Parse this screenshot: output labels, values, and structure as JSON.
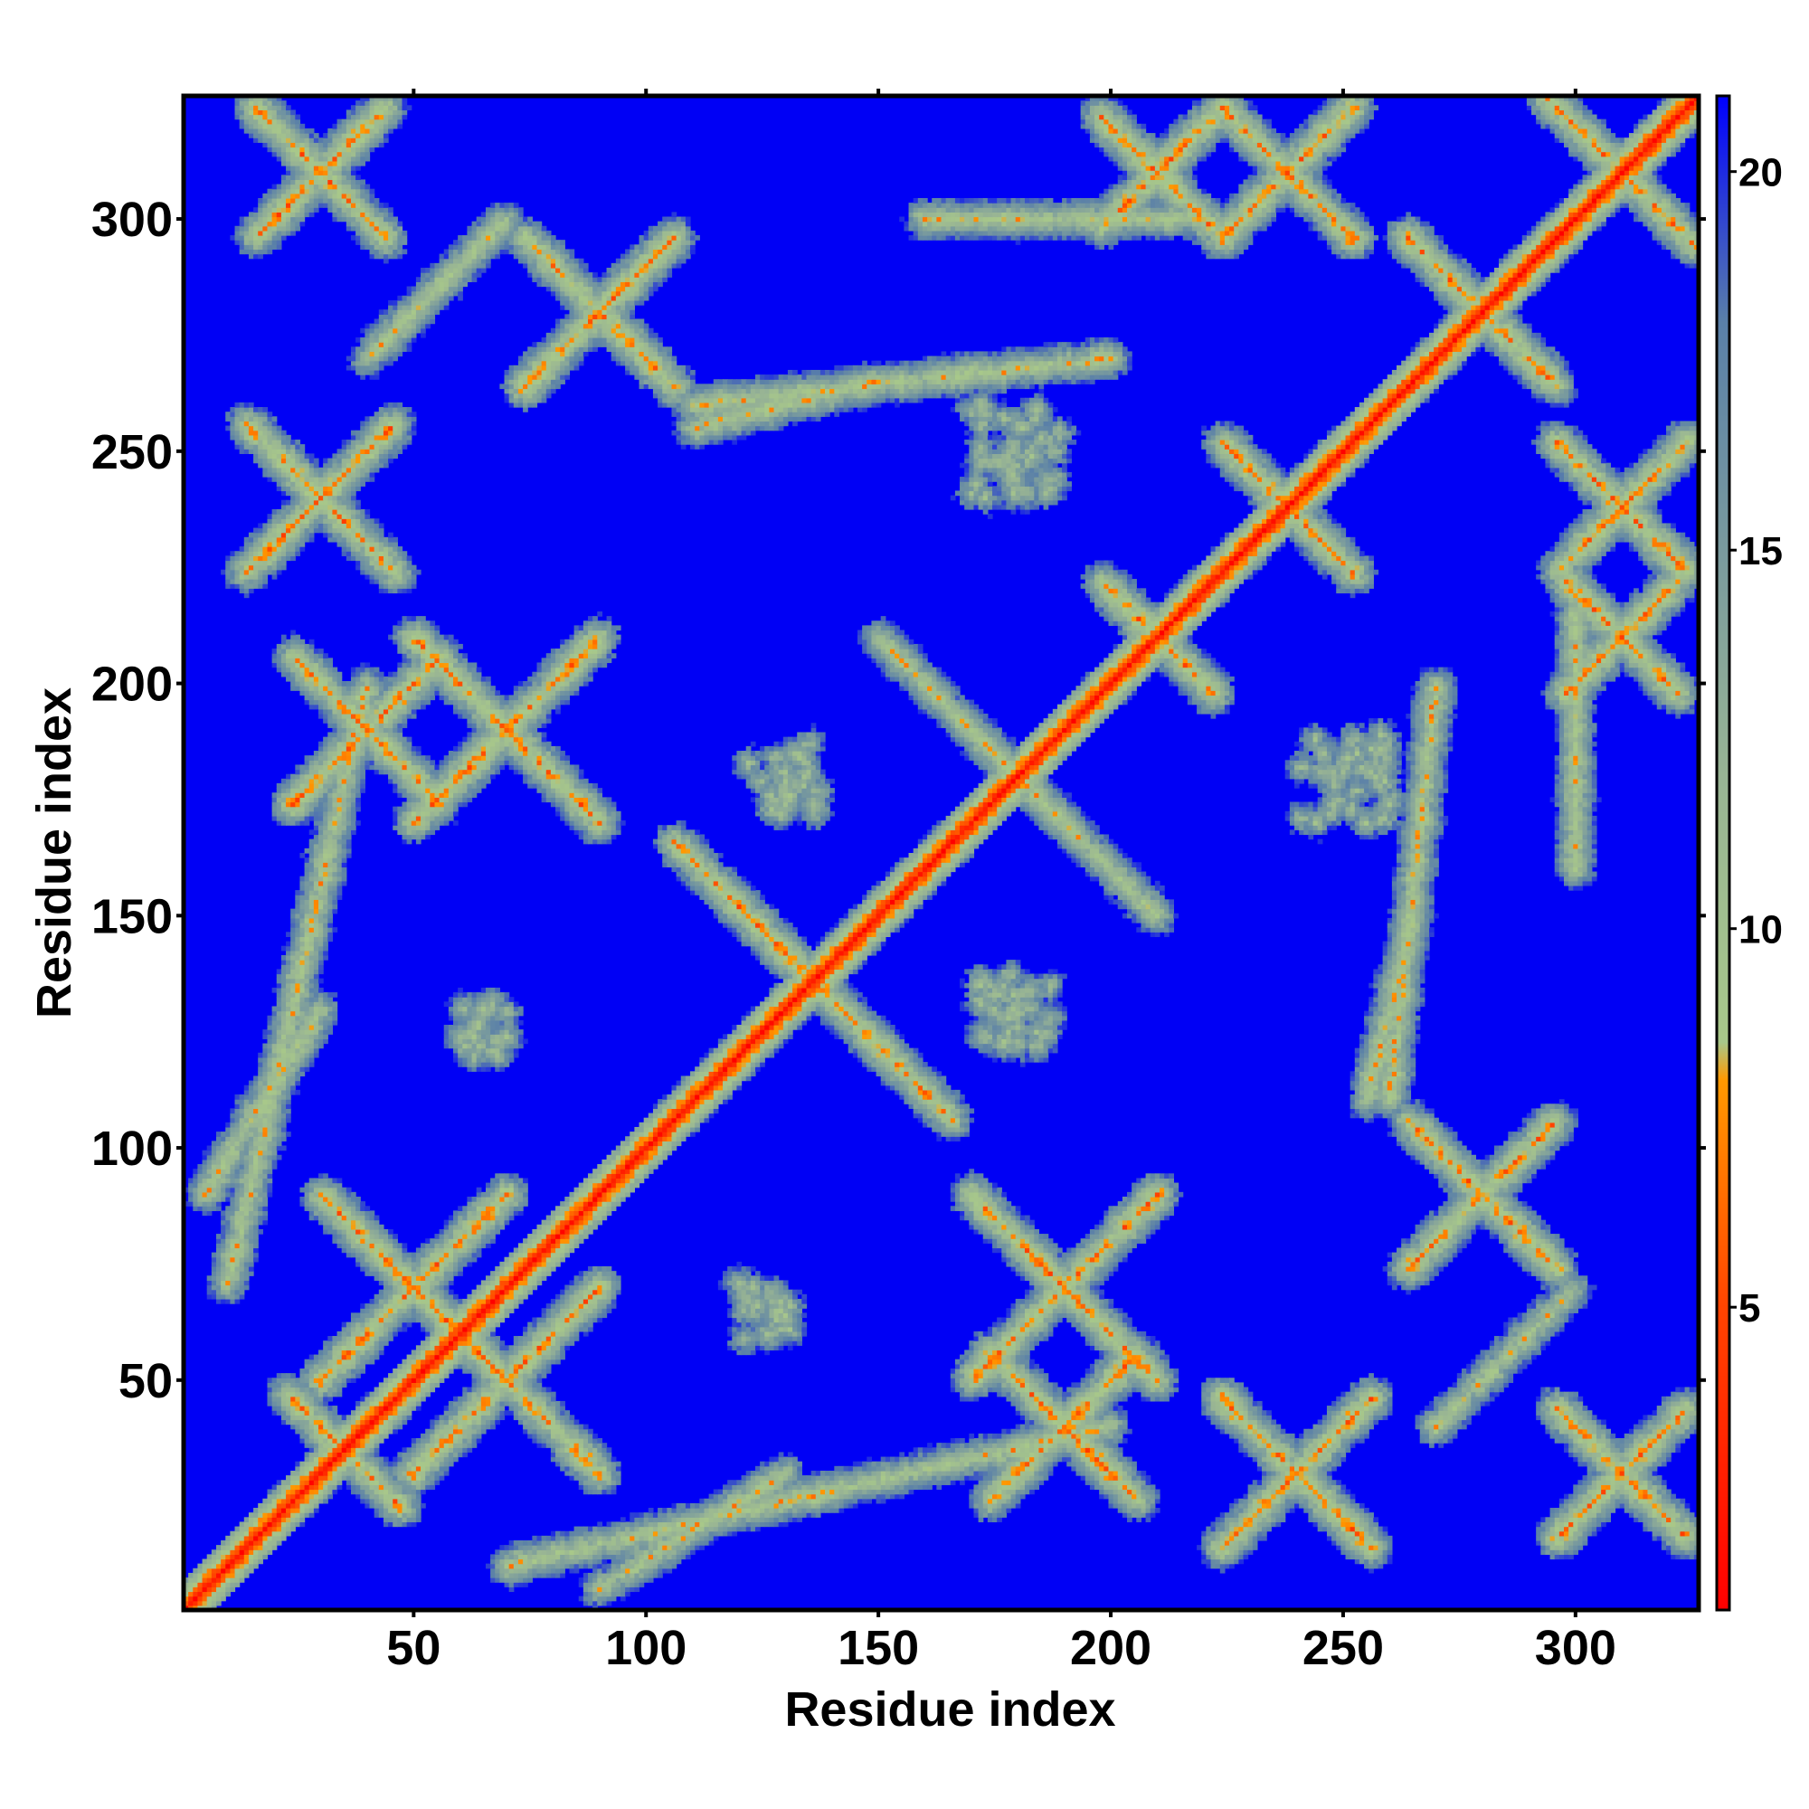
{
  "chart_data": {
    "type": "heatmap",
    "title": "",
    "xlabel": "Residue index",
    "ylabel": "Residue index",
    "n_residues": 326,
    "xlim": [
      1,
      326
    ],
    "ylim": [
      1,
      326
    ],
    "x_ticks": [
      50,
      100,
      150,
      200,
      250,
      300
    ],
    "y_ticks": [
      50,
      100,
      150,
      200,
      250,
      300
    ],
    "colorbar": {
      "ticks": [
        5,
        10,
        15,
        20
      ],
      "range": [
        1,
        21
      ],
      "colors": [
        {
          "value": 1,
          "color": "#ff0000"
        },
        {
          "value": 5,
          "color": "#ff4400"
        },
        {
          "value": 8,
          "color": "#ff9900"
        },
        {
          "value": 8.5,
          "color": "#a8c88a"
        },
        {
          "value": 12,
          "color": "#98b494"
        },
        {
          "value": 18,
          "color": "#5a80a8"
        },
        {
          "value": 21,
          "color": "#0000ff"
        }
      ],
      "background_color": "#0000f5"
    },
    "contact_features": [
      {
        "kind": "diagonal",
        "from": 1,
        "to": 326
      },
      {
        "kind": "x-cross",
        "center": [
          35,
          35
        ],
        "arm": 12
      },
      {
        "kind": "x-cross",
        "center": [
          136,
          136
        ],
        "arm": 30
      },
      {
        "kind": "x-cross",
        "center": [
          210,
          210
        ],
        "arm": 12
      },
      {
        "kind": "x-cross",
        "center": [
          238,
          238
        ],
        "arm": 14
      },
      {
        "kind": "x-cross",
        "center": [
          310,
          310
        ],
        "arm": 16
      },
      {
        "kind": "x-cross",
        "center": [
          30,
          310
        ],
        "arm": 14
      },
      {
        "kind": "x-cross",
        "center": [
          30,
          240
        ],
        "arm": 16
      },
      {
        "kind": "x-cross",
        "center": [
          240,
          30
        ],
        "arm": 16
      },
      {
        "kind": "x-cross",
        "center": [
          310,
          30
        ],
        "arm": 14
      },
      {
        "kind": "x-cross",
        "center": [
          210,
          310
        ],
        "arm": 12
      },
      {
        "kind": "x-cross",
        "center": [
          238,
          310
        ],
        "arm": 14
      },
      {
        "kind": "x-cross",
        "center": [
          310,
          238
        ],
        "arm": 14
      },
      {
        "kind": "x-cross",
        "center": [
          310,
          210
        ],
        "arm": 12
      },
      {
        "kind": "x-cross",
        "center": [
          280,
          280
        ],
        "arm": 16
      },
      {
        "kind": "x-cross",
        "center": [
          70,
          190
        ],
        "arm": 20
      },
      {
        "kind": "x-cross",
        "center": [
          190,
          70
        ],
        "arm": 20
      },
      {
        "kind": "x-cross",
        "center": [
          50,
          70
        ],
        "arm": 20
      },
      {
        "kind": "x-cross",
        "center": [
          70,
          50
        ],
        "arm": 20
      },
      {
        "kind": "x-cross",
        "center": [
          90,
          280
        ],
        "arm": 16
      },
      {
        "kind": "x-cross",
        "center": [
          280,
          90
        ],
        "arm": 16
      },
      {
        "kind": "x-cross",
        "center": [
          190,
          40
        ],
        "arm": 16
      },
      {
        "kind": "x-cross",
        "center": [
          40,
          190
        ],
        "arm": 16
      },
      {
        "kind": "band",
        "from": [
          5,
          90
        ],
        "to": [
          30,
          130
        ]
      },
      {
        "kind": "band",
        "from": [
          90,
          5
        ],
        "to": [
          130,
          30
        ]
      },
      {
        "kind": "band",
        "from": [
          70,
          10
        ],
        "to": [
          200,
          40
        ]
      },
      {
        "kind": "band",
        "from": [
          10,
          70
        ],
        "to": [
          40,
          200
        ]
      },
      {
        "kind": "band",
        "from": [
          110,
          260
        ],
        "to": [
          200,
          270
        ]
      },
      {
        "kind": "band",
        "from": [
          260,
          110
        ],
        "to": [
          270,
          200
        ]
      },
      {
        "kind": "band",
        "from": [
          160,
          300
        ],
        "to": [
          215,
          300
        ]
      },
      {
        "kind": "band",
        "from": [
          300,
          160
        ],
        "to": [
          300,
          215
        ]
      },
      {
        "kind": "band",
        "from": [
          150,
          210
        ],
        "to": [
          200,
          160
        ]
      },
      {
        "kind": "band",
        "from": [
          210,
          150
        ],
        "to": [
          160,
          200
        ]
      },
      {
        "kind": "band",
        "from": [
          255,
          110
        ],
        "to": [
          265,
          150
        ]
      },
      {
        "kind": "band",
        "from": [
          110,
          255
        ],
        "to": [
          150,
          265
        ]
      },
      {
        "kind": "band",
        "from": [
          270,
          40
        ],
        "to": [
          300,
          70
        ]
      },
      {
        "kind": "band",
        "from": [
          40,
          270
        ],
        "to": [
          70,
          300
        ]
      },
      {
        "kind": "patch",
        "center": [
          130,
          180
        ],
        "size": 8
      },
      {
        "kind": "patch",
        "center": [
          180,
          130
        ],
        "size": 8
      },
      {
        "kind": "patch",
        "center": [
          65,
          125
        ],
        "size": 6
      },
      {
        "kind": "patch",
        "center": [
          125,
          65
        ],
        "size": 6
      },
      {
        "kind": "patch",
        "center": [
          250,
          180
        ],
        "size": 10
      },
      {
        "kind": "patch",
        "center": [
          180,
          250
        ],
        "size": 10
      }
    ]
  }
}
